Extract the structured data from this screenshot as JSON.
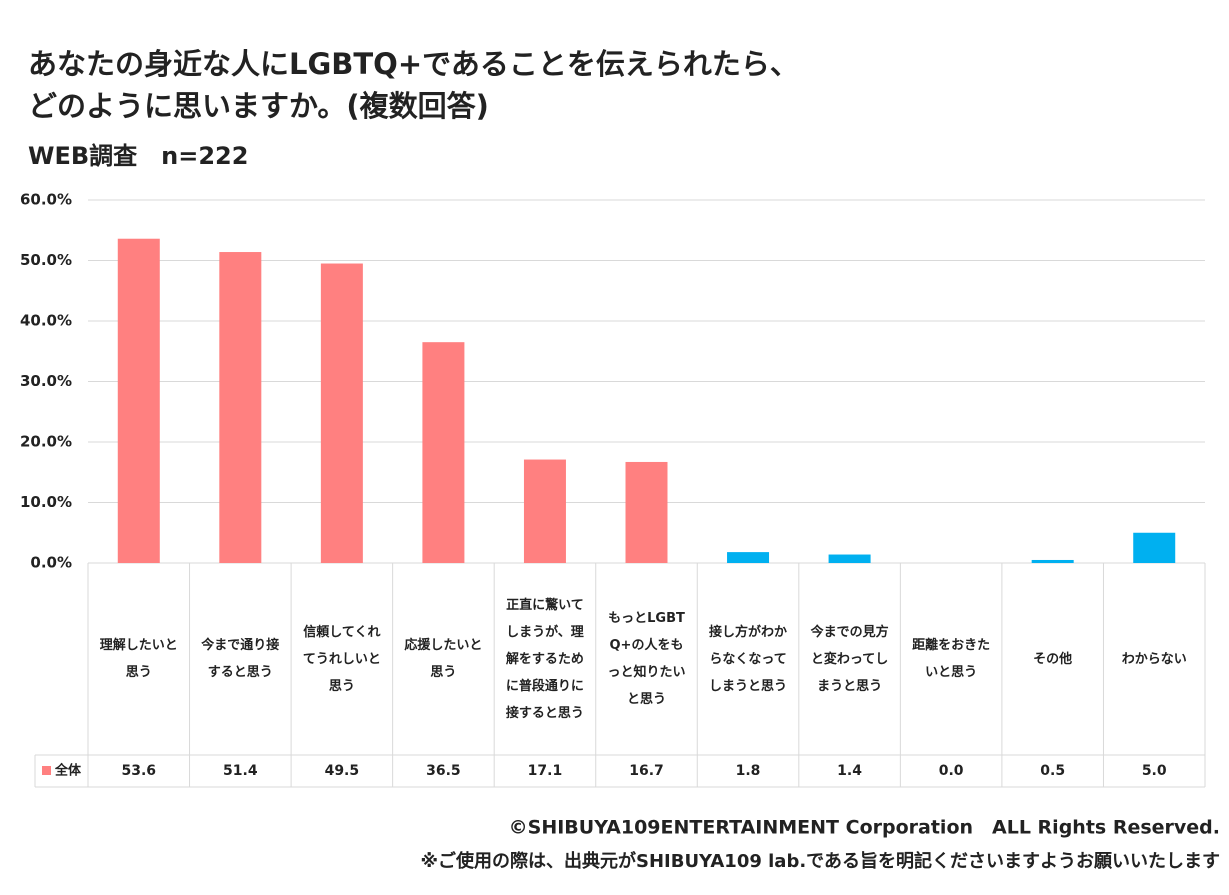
{
  "chart_data": {
    "type": "bar",
    "title": [
      "あなたの身近な人にLGBTQ+であることを伝えられたら、",
      "どのように思いますか。(複数回答)"
    ],
    "subtitle": "WEB調査　n=222",
    "categories": [
      "理解したいと思う",
      "今まで通り接すると思う",
      "信頼してくれてうれしいと思う",
      "応援したいと思う",
      "正直に驚いてしまうが、理解をするために普段通りに接すると思う",
      "もっとLGBTQ+の人をもっと知りたいと思う",
      "接し方がわからなくなってしまうと思う",
      "今までの見方と変わってしまうと思う",
      "距離をおきたいと思う",
      "その他",
      "わからない"
    ],
    "series": [
      {
        "name": "全体",
        "color": "#ff8080",
        "colors": [
          "#ff8080",
          "#ff8080",
          "#ff8080",
          "#ff8080",
          "#ff8080",
          "#ff8080",
          "#00b0f0",
          "#00b0f0",
          "#00b0f0",
          "#00b0f0",
          "#00b0f0"
        ],
        "values": [
          53.6,
          51.4,
          49.5,
          36.5,
          17.1,
          16.7,
          1.8,
          1.4,
          0.0,
          0.5,
          5.0
        ],
        "value_labels": [
          "53.6",
          "51.4",
          "49.5",
          "36.5",
          "17.1",
          "16.7",
          "1.8",
          "1.4",
          "0.0",
          "0.5",
          "5.0"
        ]
      }
    ],
    "ylim": [
      0,
      60
    ],
    "yticks": [
      {
        "value": 0,
        "label": "0.0%"
      },
      {
        "value": 10,
        "label": "10.0%"
      },
      {
        "value": 20,
        "label": "20.0%"
      },
      {
        "value": 30,
        "label": "30.0%"
      },
      {
        "value": 40,
        "label": "40.0%"
      },
      {
        "value": 50,
        "label": "50.0%"
      },
      {
        "value": 60,
        "label": "60.0%"
      }
    ],
    "grid": true,
    "footer": [
      "©SHIBUYA109ENTERTAINMENT Corporation　ALL Rights Reserved.",
      "※ご使用の際は、出典元がSHIBUYA109 lab.である旨を明記くださいますようお願いいたします"
    ]
  }
}
